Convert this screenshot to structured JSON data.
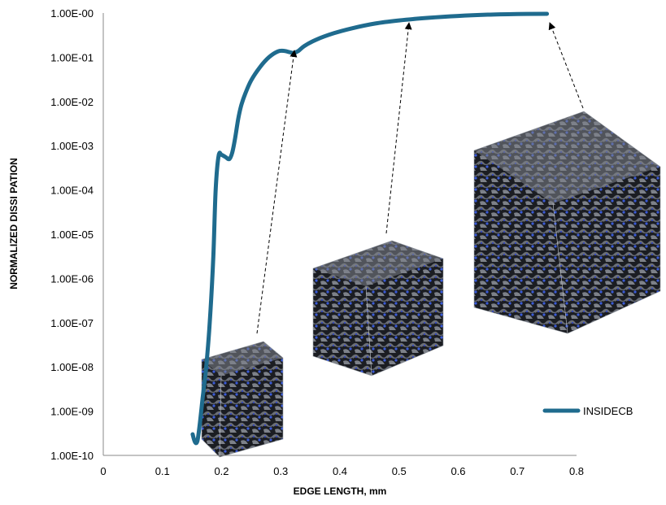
{
  "chart_data": {
    "type": "line",
    "title": "",
    "xlabel": "EDGE LENGTH, mm",
    "ylabel": "NORMALIZED  DISSI PATION",
    "xlim": [
      0,
      0.8
    ],
    "ylim": [
      1e-10,
      1
    ],
    "y_scale": "log",
    "x_ticks": [
      0,
      0.1,
      0.2,
      0.3,
      0.4,
      0.5,
      0.6,
      0.7,
      0.8
    ],
    "x_tick_labels": [
      "0",
      "0.1",
      "0.2",
      "0.3",
      "0.4",
      "0.5",
      "0.6",
      "0.7",
      "0.8"
    ],
    "y_ticks": [
      1e-10,
      1e-09,
      1e-08,
      1e-07,
      1e-06,
      1e-05,
      0.0001,
      0.001,
      0.01,
      0.1,
      1
    ],
    "y_tick_labels": [
      "1.00E-10",
      "1.00E-09",
      "1.00E-08",
      "1.00E-07",
      "1.00E-06",
      "1.00E-05",
      "1.00E-04",
      "1.00E-03",
      "1.00E-02",
      "1.00E-01",
      "1.00E-00"
    ],
    "grid": false,
    "legend_position": "bottom-right",
    "series": [
      {
        "name": "INSIDECB",
        "color": "#1f6b8e",
        "x": [
          0.151,
          0.155,
          0.159,
          0.163,
          0.168,
          0.174,
          0.18,
          0.186,
          0.19,
          0.195,
          0.2,
          0.207,
          0.213,
          0.218,
          0.223,
          0.228,
          0.233,
          0.24,
          0.25,
          0.265,
          0.28,
          0.295,
          0.305,
          0.315,
          0.322,
          0.33,
          0.34,
          0.36,
          0.39,
          0.42,
          0.46,
          0.5,
          0.55,
          0.6,
          0.65,
          0.7,
          0.75
        ],
        "y": [
          3e-10,
          2e-10,
          2.1e-10,
          5e-10,
          2e-09,
          1e-08,
          1e-07,
          3e-06,
          0.0001,
          0.0006,
          0.00062,
          0.00055,
          0.0005,
          0.0007,
          0.0015,
          0.004,
          0.008,
          0.015,
          0.03,
          0.06,
          0.1,
          0.135,
          0.14,
          0.13,
          0.125,
          0.14,
          0.18,
          0.25,
          0.35,
          0.45,
          0.58,
          0.68,
          0.78,
          0.86,
          0.92,
          0.95,
          0.96
        ]
      }
    ],
    "annotations": [
      {
        "type": "arrow",
        "to_x": 0.318,
        "to_y": 0.13
      },
      {
        "type": "arrow",
        "to_x": 0.515,
        "to_y": 0.82
      },
      {
        "type": "arrow",
        "to_x": 0.755,
        "to_y": 0.9
      }
    ]
  },
  "insets": [
    {
      "name": "small-cube-inset",
      "icon": "3d-microstructure-cube"
    },
    {
      "name": "medium-cube-inset",
      "icon": "3d-microstructure-cube"
    },
    {
      "name": "large-cube-inset",
      "icon": "3d-microstructure-cube"
    }
  ]
}
